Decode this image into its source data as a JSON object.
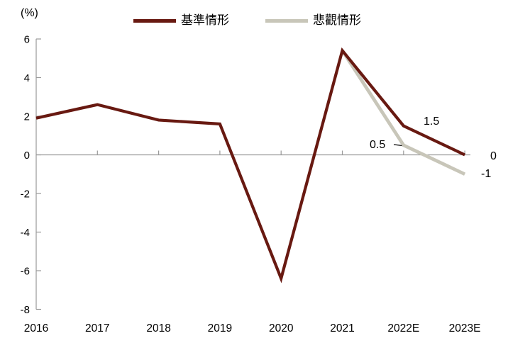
{
  "percent_label": "(%)",
  "legend": [
    {
      "label": "基準情形",
      "color": "#681911"
    },
    {
      "label": "悲觀情形",
      "color": "#c8c6b9"
    }
  ],
  "colors": {
    "baseline": "#681911",
    "pessimistic": "#c8c6b9",
    "axis": "#999999",
    "text": "#000000"
  },
  "chart_data": {
    "type": "line",
    "categories": [
      "2016",
      "2017",
      "2018",
      "2019",
      "2020",
      "2021",
      "2022E",
      "2023E"
    ],
    "series": [
      {
        "name": "基準情形",
        "color": "#681911",
        "values": [
          1.9,
          2.6,
          1.8,
          1.6,
          -6.4,
          5.4,
          1.5,
          0
        ]
      },
      {
        "name": "悲觀情形",
        "color": "#c8c6b9",
        "values": [
          null,
          null,
          null,
          null,
          null,
          5.4,
          0.5,
          -1
        ]
      }
    ],
    "title": "",
    "xlabel": "",
    "ylabel": "(%)",
    "ylim": [
      -8,
      6
    ],
    "y_ticks": [
      6,
      4,
      2,
      0,
      -2,
      -4,
      -6,
      -8
    ],
    "grid": "zero-line-only",
    "legend_position": "top",
    "annotations": [
      {
        "text": "1.5",
        "series": "基準情形",
        "category": "2022E"
      },
      {
        "text": "0.5",
        "series": "悲觀情形",
        "category": "2022E"
      },
      {
        "text": "0",
        "series": "基準情形",
        "category": "2023E"
      },
      {
        "text": "-1",
        "series": "悲觀情形",
        "category": "2023E"
      }
    ]
  }
}
